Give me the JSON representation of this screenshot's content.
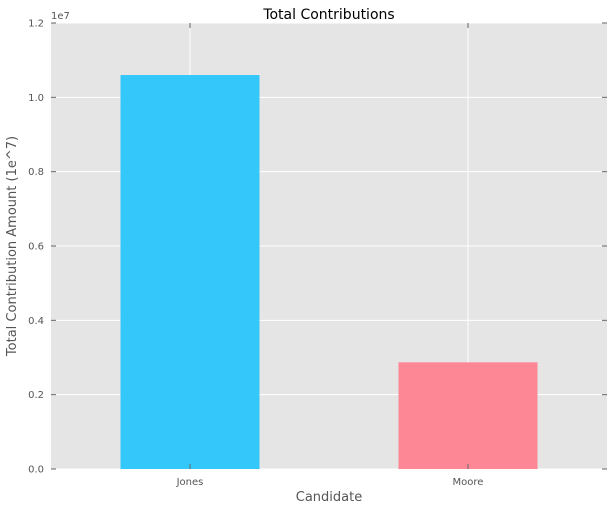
{
  "chart_data": {
    "type": "bar",
    "title": "Total Contributions",
    "xlabel": "Candidate",
    "ylabel": "Total Contribution Amount (1e^7)",
    "offset_text": "1e7",
    "categories": [
      "Jones",
      "Moore"
    ],
    "values": [
      10600000,
      2870000
    ],
    "colors": [
      "#33c8f9",
      "#fd8794"
    ],
    "ylim": [
      0,
      12000000
    ],
    "yticks": [
      0,
      2000000,
      4000000,
      6000000,
      8000000,
      10000000,
      12000000
    ],
    "ytick_labels": [
      "0.0",
      "0.2",
      "0.4",
      "0.6",
      "0.8",
      "1.0",
      "1.2"
    ],
    "grid": true,
    "background": "#e5e5e5",
    "grid_color": "#ffffff"
  }
}
